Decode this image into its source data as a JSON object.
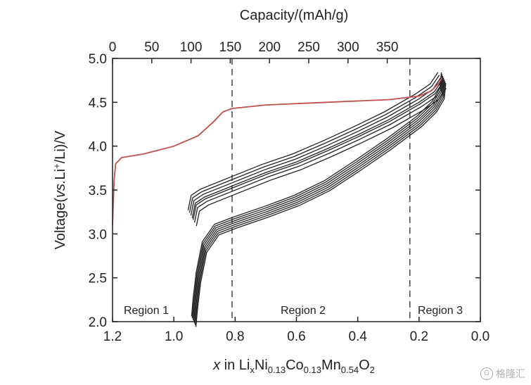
{
  "chart_data": {
    "type": "line",
    "title": "",
    "xlabel_bottom": {
      "italic": "x",
      "rest": " in Li",
      "sub1": "x",
      "mid1": "Ni",
      "sub2": "0.13",
      "mid2": "Co",
      "sub3": "0.13",
      "mid3": "Mn",
      "sub4": "0.54",
      "mid4": "O",
      "sub5": "2"
    },
    "xlabel_top": "Capacity/(mAh/g)",
    "ylabel": {
      "pre": "Voltage(",
      "italic": "vs.",
      "mid": "Li",
      "sup": "+",
      "post": "/Li)/V"
    },
    "x_bottom": {
      "min": 0.0,
      "max": 1.2,
      "reversed": true,
      "ticks": [
        "1.2",
        "1.0",
        "0.8",
        "0.6",
        "0.4",
        "0.2",
        "0.0"
      ],
      "tick_values": [
        1.2,
        1.0,
        0.8,
        0.6,
        0.4,
        0.2,
        0.0
      ]
    },
    "x_top": {
      "ticks": [
        "0",
        "50",
        "100",
        "150",
        "200",
        "250",
        "300",
        "350"
      ],
      "tick_values": [
        0,
        50,
        100,
        150,
        200,
        250,
        300,
        350
      ]
    },
    "y": {
      "min": 2.0,
      "max": 5.0,
      "ticks": [
        "2.0",
        "2.5",
        "3.0",
        "3.5",
        "4.0",
        "4.5",
        "5.0"
      ],
      "tick_values": [
        2.0,
        2.5,
        3.0,
        3.5,
        4.0,
        4.5,
        5.0
      ]
    },
    "reference_lines_x": [
      0.81,
      0.23
    ],
    "regions": [
      "Region 1",
      "Region 2",
      "Region 3"
    ],
    "first_charge": {
      "color": "#c0504d",
      "points": [
        [
          1.2,
          3.1
        ],
        [
          1.195,
          3.6
        ],
        [
          1.19,
          3.8
        ],
        [
          1.17,
          3.87
        ],
        [
          1.1,
          3.91
        ],
        [
          1.0,
          4.0
        ],
        [
          0.92,
          4.12
        ],
        [
          0.87,
          4.28
        ],
        [
          0.84,
          4.39
        ],
        [
          0.81,
          4.43
        ],
        [
          0.7,
          4.47
        ],
        [
          0.5,
          4.5
        ],
        [
          0.3,
          4.53
        ],
        [
          0.2,
          4.57
        ],
        [
          0.16,
          4.63
        ],
        [
          0.135,
          4.72
        ],
        [
          0.125,
          4.78
        ]
      ]
    },
    "cycles": {
      "color": "#222222",
      "charge_base": [
        [
          0.94,
          3.18
        ],
        [
          0.93,
          3.35
        ],
        [
          0.9,
          3.42
        ],
        [
          0.8,
          3.56
        ],
        [
          0.7,
          3.7
        ],
        [
          0.6,
          3.82
        ],
        [
          0.5,
          3.97
        ],
        [
          0.4,
          4.13
        ],
        [
          0.3,
          4.3
        ],
        [
          0.2,
          4.5
        ],
        [
          0.15,
          4.62
        ],
        [
          0.125,
          4.75
        ]
      ],
      "discharge_base": [
        [
          0.12,
          4.78
        ],
        [
          0.125,
          4.6
        ],
        [
          0.15,
          4.45
        ],
        [
          0.2,
          4.28
        ],
        [
          0.3,
          4.02
        ],
        [
          0.4,
          3.78
        ],
        [
          0.5,
          3.55
        ],
        [
          0.6,
          3.38
        ],
        [
          0.7,
          3.25
        ],
        [
          0.8,
          3.13
        ],
        [
          0.86,
          3.05
        ],
        [
          0.9,
          2.85
        ],
        [
          0.92,
          2.5
        ],
        [
          0.93,
          2.2
        ],
        [
          0.935,
          2.0
        ]
      ],
      "charge_offsets": [
        -0.09,
        -0.05,
        -0.02,
        0.0,
        0.03,
        0.06,
        0.09
      ],
      "discharge_offsets": [
        -0.06,
        -0.04,
        -0.02,
        0.0,
        0.02,
        0.04,
        0.06
      ]
    }
  },
  "watermark": {
    "icon": "logo-icon",
    "text": "格隆汇"
  }
}
